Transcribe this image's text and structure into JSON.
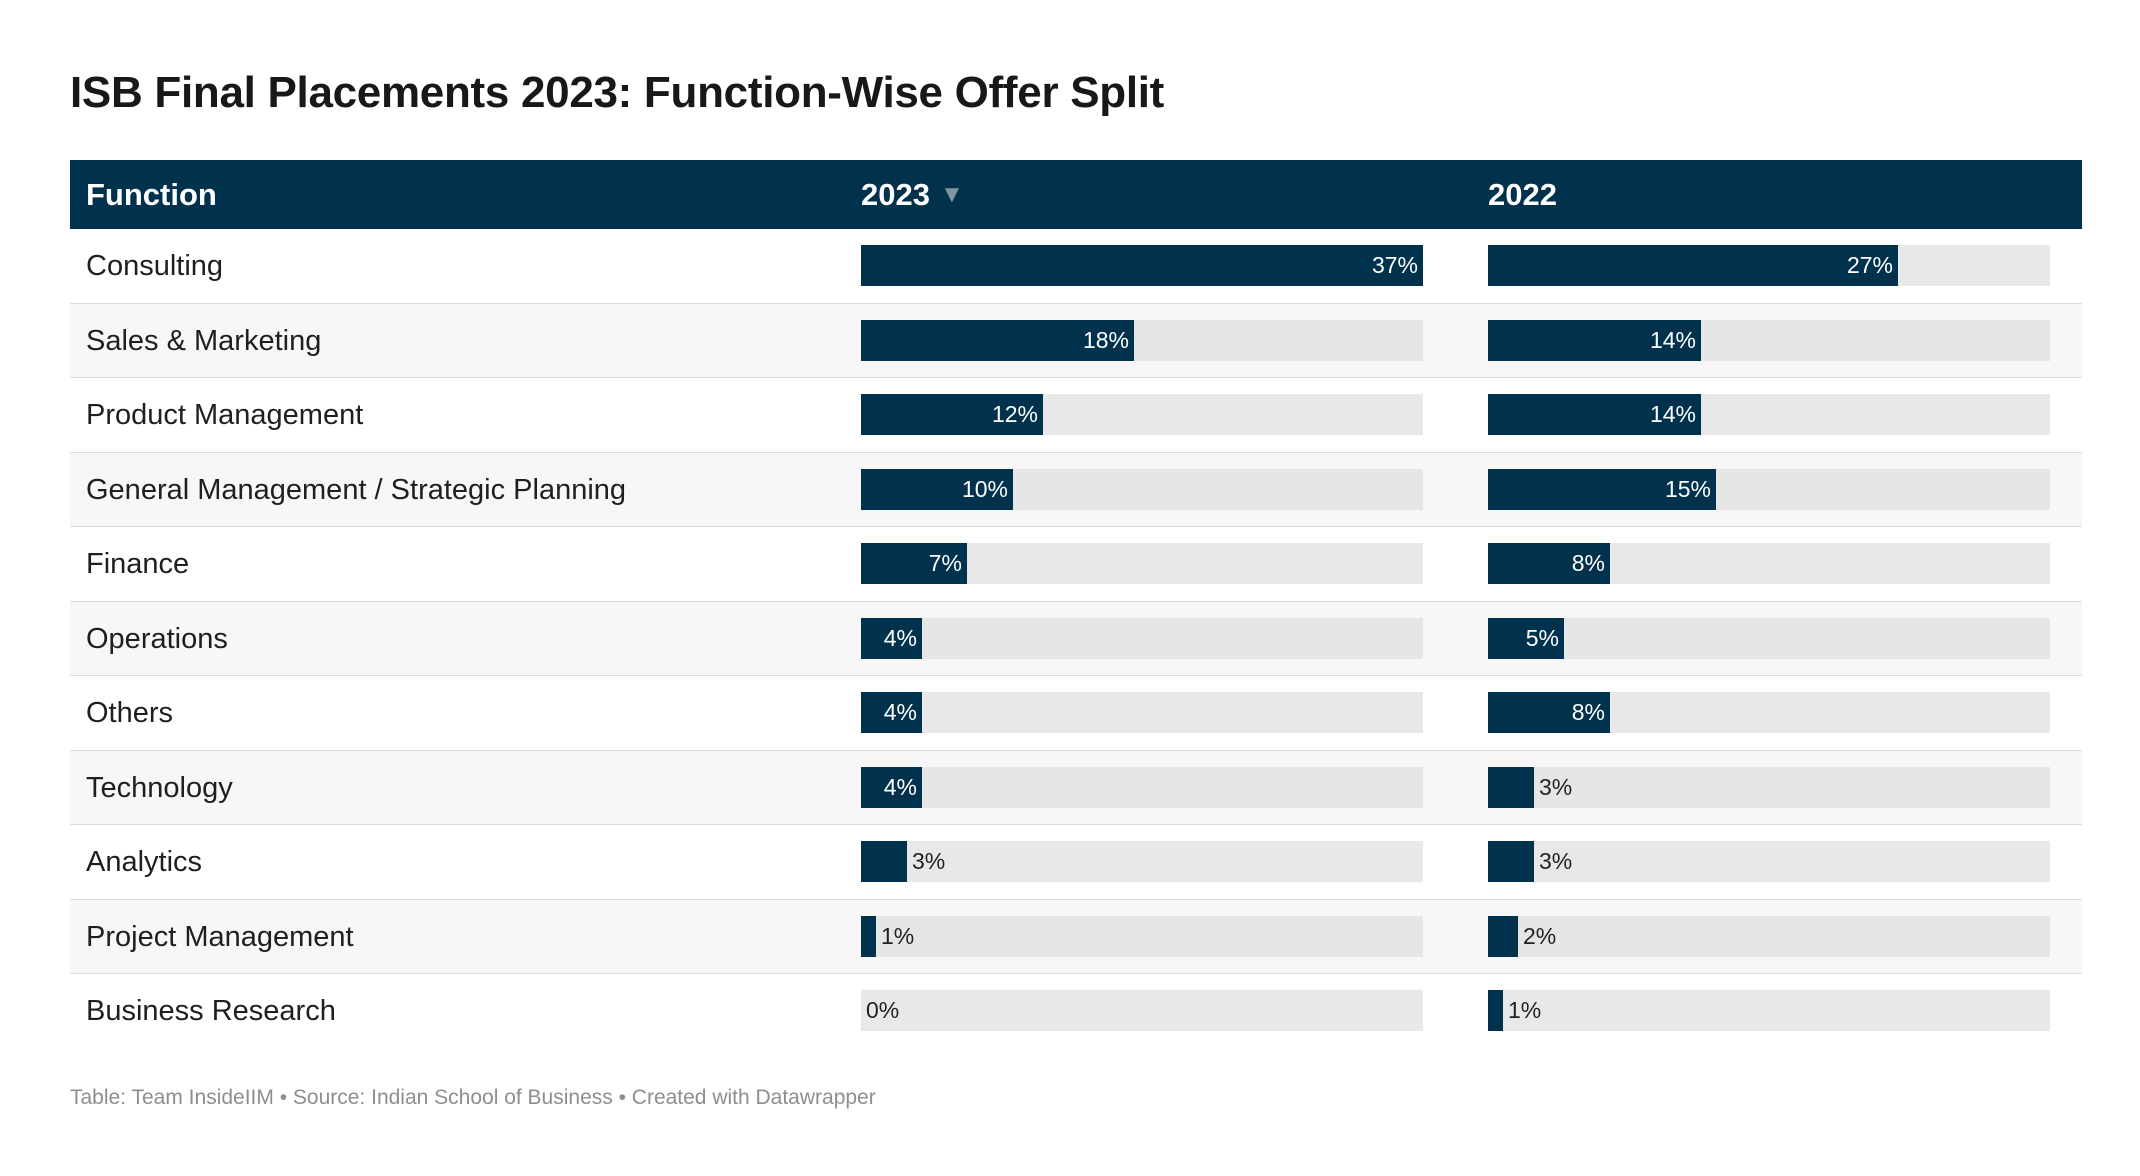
{
  "title": "ISB Final Placements 2023: Function-Wise Offer Split",
  "table": {
    "header": {
      "function": "Function",
      "col2023": "2023",
      "sort_glyph": "▼",
      "col2022": "2022"
    }
  },
  "footer": "Table: Team InsideIIM • Source: Indian School of Business • Created with Datawrapper",
  "colors": {
    "bar": "#01324d",
    "track": "#e8e8e8",
    "header_bg": "#01324d"
  },
  "chart_data": {
    "type": "table",
    "title": "ISB Final Placements 2023: Function-Wise Offer Split",
    "columns": [
      "Function",
      "2023",
      "2022"
    ],
    "max_value": 37,
    "categories": [
      "Consulting",
      "Sales & Marketing",
      "Product Management",
      "General Management / Strategic Planning",
      "Finance",
      "Operations",
      "Others",
      "Technology",
      "Analytics",
      "Project Management",
      "Business Research"
    ],
    "series": [
      {
        "name": "2023",
        "values": [
          37,
          18,
          12,
          10,
          7,
          4,
          4,
          4,
          3,
          1,
          0
        ]
      },
      {
        "name": "2022",
        "values": [
          27,
          14,
          14,
          15,
          8,
          5,
          8,
          3,
          3,
          2,
          1
        ]
      }
    ],
    "unit": "%",
    "sort": "2023 descending"
  }
}
